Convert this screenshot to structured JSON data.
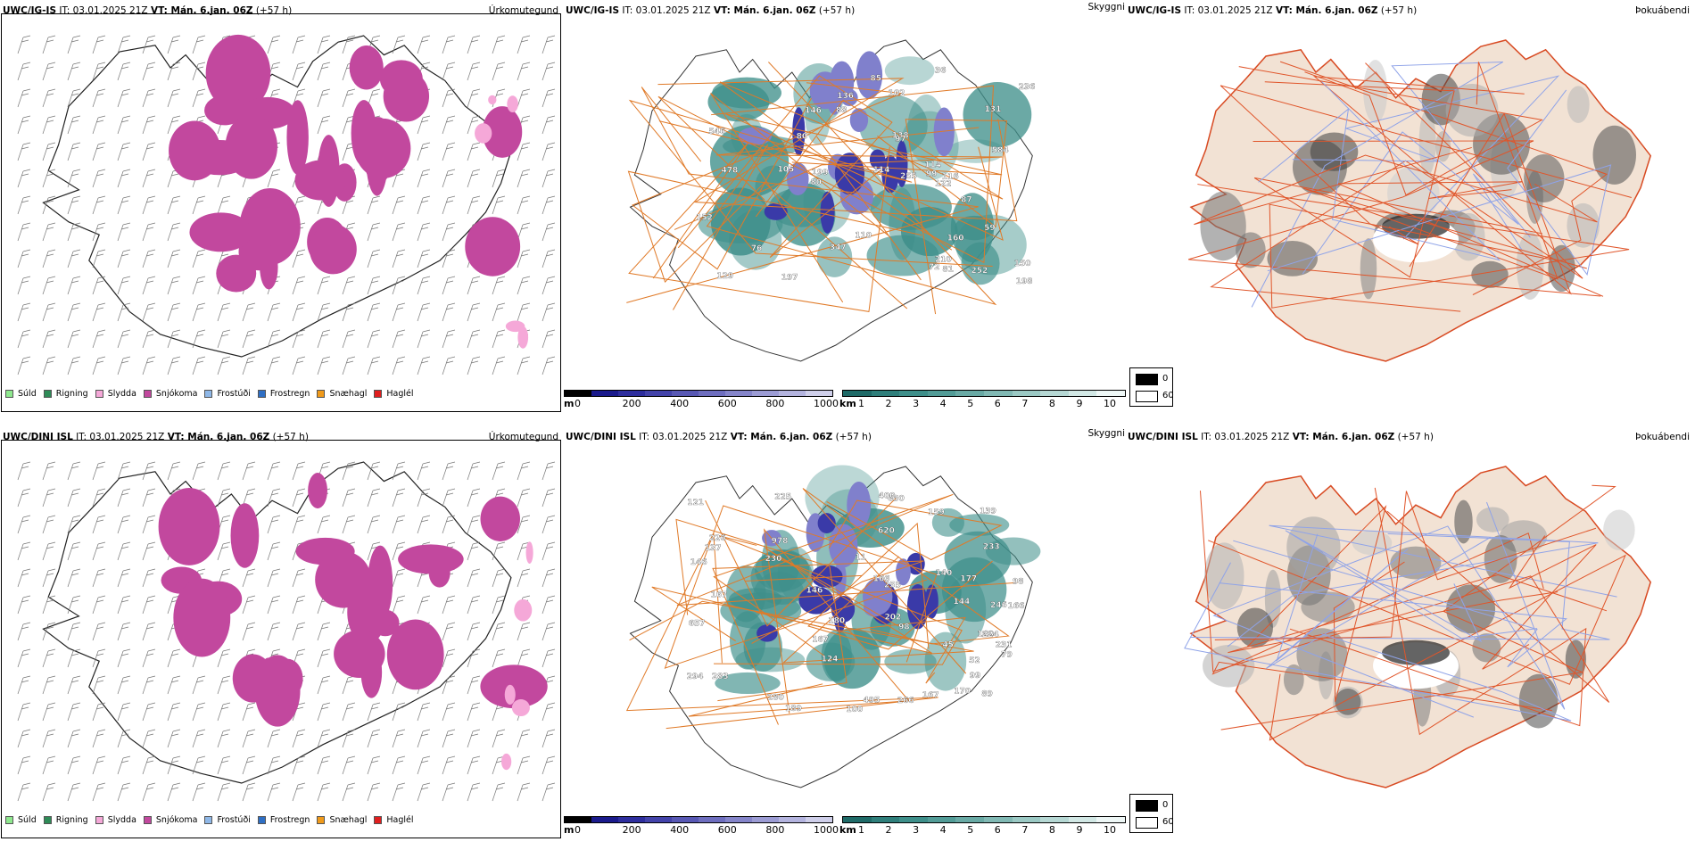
{
  "rows": [
    {
      "model": "UWC/IG-IS",
      "header_rest": " IT: 03.01.2025 21Z ",
      "vt_label": "VT: Mán. 6.jan. 06Z",
      "lead": " (+57 h)"
    },
    {
      "model": "UWC/DINI ISL",
      "header_rest": " IT: 03.01.2025 21Z ",
      "vt_label": "VT: Mán. 6.jan. 06Z",
      "lead": " (+57 h)"
    }
  ],
  "panels": {
    "precip_title": "Úrkomutegund",
    "cloud_title": "Skyggni",
    "fog_title": "Þokuábendi"
  },
  "precip_legend": [
    {
      "label": "Súld",
      "color": "#8ee88e"
    },
    {
      "label": "Rigning",
      "color": "#2e8b57"
    },
    {
      "label": "Slydda",
      "color": "#f5a8d8"
    },
    {
      "label": "Snjókoma",
      "color": "#c2489e"
    },
    {
      "label": "Frostúði",
      "color": "#8fb8e8"
    },
    {
      "label": "Frostregn",
      "color": "#2f6fc4"
    },
    {
      "label": "Snæhagl",
      "color": "#f09a1a"
    },
    {
      "label": "Haglél",
      "color": "#e01e1e"
    }
  ],
  "ceiling_bar": {
    "unit": "m",
    "ticks": [
      "0",
      "200",
      "400",
      "600",
      "800",
      "1000"
    ],
    "colors": [
      "#000000",
      "#1a1a8c",
      "#2e2e9e",
      "#4343aa",
      "#5858b4",
      "#6e6ebf",
      "#8585ca",
      "#9c9cd4",
      "#b4b4df",
      "#cfcfea"
    ]
  },
  "visibility_bar": {
    "unit": "km",
    "ticks": [
      "1",
      "2",
      "3",
      "4",
      "5",
      "6",
      "7",
      "8",
      "9",
      "10"
    ],
    "colors": [
      "#1f6b68",
      "#2f7f7b",
      "#3e8f8a",
      "#529c97",
      "#69aaa5",
      "#81b9b4",
      "#9bc9c4",
      "#b6d8d4",
      "#d2e8e5",
      "#eef7f6"
    ]
  },
  "fog_legend": {
    "high": "0",
    "low": "60"
  },
  "ceiling_labels": [
    [
      "255",
      "72",
      "87",
      "99",
      "105",
      "131",
      "114",
      "114",
      "138",
      "110",
      "146",
      "80",
      "59",
      "85",
      "80",
      "152",
      "97",
      "546",
      "197",
      "584",
      "81",
      "150",
      "122",
      "160",
      "347",
      "136",
      "88",
      "236",
      "199",
      "478",
      "198",
      "252",
      "129",
      "210",
      "76",
      "36",
      "102",
      "116"
    ],
    [
      "180",
      "124",
      "140",
      "98",
      "144",
      "620",
      "159",
      "52",
      "11",
      "146",
      "89",
      "139",
      "140",
      "230",
      "294",
      "255",
      "978",
      "280",
      "495",
      "225",
      "231",
      "657",
      "630",
      "146",
      "167",
      "202",
      "246",
      "166",
      "400",
      "233",
      "167",
      "224",
      "266",
      "283",
      "99",
      "100",
      "189",
      "170",
      "45",
      "137",
      "226",
      "177",
      "167",
      "121",
      "98",
      "166",
      "79"
    ]
  ],
  "colors": {
    "snow": "#c2489e",
    "sleet": "#f5a8d8",
    "cloud_low": "#3a3aa8",
    "cloud_mid": "#8080cc",
    "vis": "#3e8f8a",
    "roads": "#e07a28",
    "fog_land": "#f2e2d4"
  }
}
